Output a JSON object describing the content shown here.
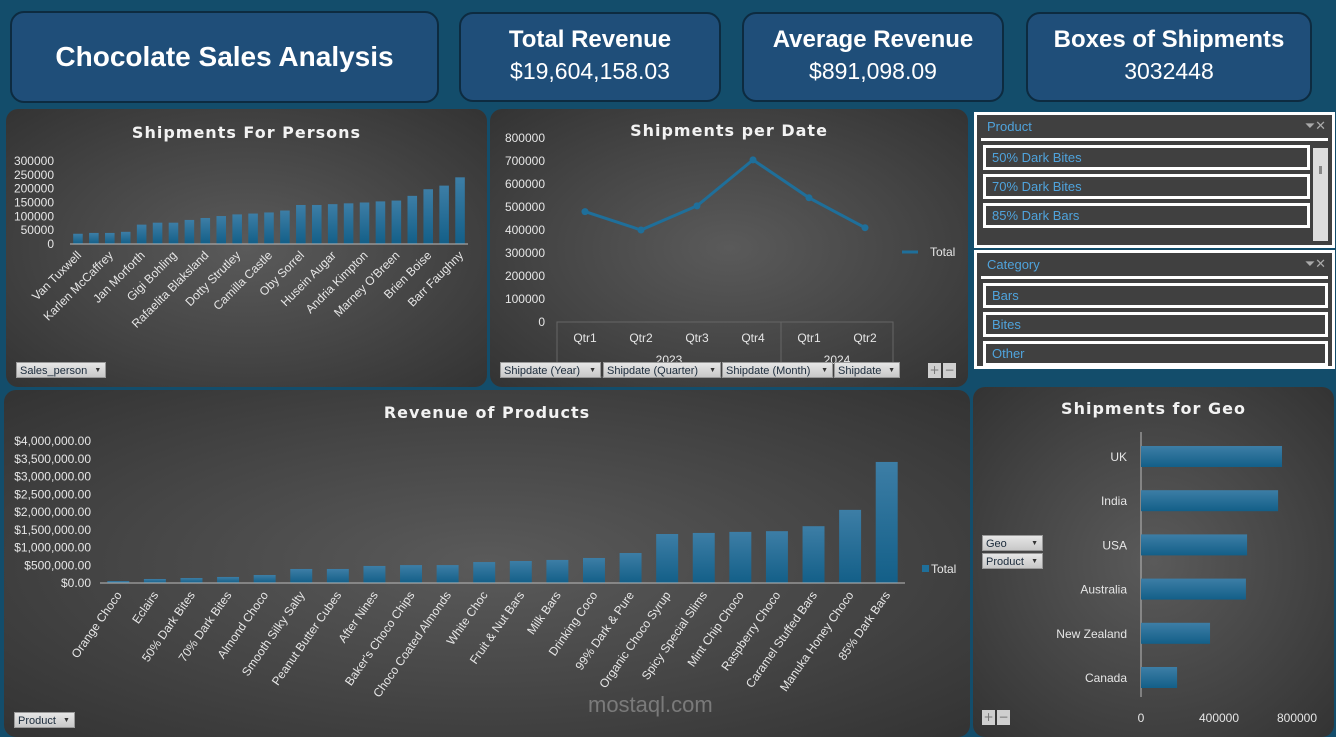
{
  "header": {
    "title": "Chocolate Sales Analysis"
  },
  "kpis": [
    {
      "label": "Total Revenue",
      "value": "$19,604,158.03"
    },
    {
      "label": "Average Revenue",
      "value": "$891,098.09"
    },
    {
      "label": "Boxes of Shipments",
      "value": "3032448"
    }
  ],
  "colors": {
    "bar": "#1f6f9a",
    "background": "#134d6b",
    "card": "#1f4e79",
    "slicer_text": "#4fa3dc"
  },
  "slicers": {
    "product": {
      "title": "Product",
      "items": [
        "50% Dark Bites",
        "70% Dark Bites",
        "85% Dark Bars"
      ]
    },
    "category": {
      "title": "Category",
      "items": [
        "Bars",
        "Bites",
        "Other"
      ]
    }
  },
  "field_buttons": {
    "persons": "Sales_person",
    "date": [
      "Shipdate (Year)",
      "Shipdate (Quarter)",
      "Shipdate (Month)",
      "Shipdate"
    ],
    "revenue": "Product",
    "geo": [
      "Geo",
      "Product"
    ]
  },
  "watermark": "mostaql.com",
  "chart_data": [
    {
      "type": "bar",
      "title": "Shipments For Persons",
      "ylim": [
        0,
        300000
      ],
      "yticks": [
        0,
        50000,
        100000,
        150000,
        200000,
        250000,
        300000
      ],
      "categories": [
        "Van Tuxwell",
        "",
        "Karlen McCaffrey",
        "",
        "Jan Morforth",
        "",
        "Gigi Bohling",
        "",
        "Rafaelita Blaksland",
        "",
        "Dotty Strutley",
        "",
        "Camilla Castle",
        "",
        "Oby Sorrel",
        "",
        "Husein Augar",
        "",
        "Andria Kimpton",
        "",
        "Marney O'Breen",
        "",
        "Brien Boise",
        "",
        "Barr Faughny"
      ],
      "values": [
        37000,
        40000,
        40000,
        44000,
        70000,
        77000,
        77000,
        87000,
        94000,
        101000,
        107000,
        110000,
        114000,
        121000,
        141000,
        141000,
        144000,
        147000,
        150000,
        154000,
        157000,
        174000,
        198000,
        211000,
        241000
      ]
    },
    {
      "type": "line",
      "title": "Shipments per Date",
      "ylim": [
        0,
        800000
      ],
      "yticks": [
        0,
        100000,
        200000,
        300000,
        400000,
        500000,
        600000,
        700000,
        800000
      ],
      "categories": [
        "Qtr1",
        "Qtr2",
        "Qtr3",
        "Qtr4",
        "Qtr1",
        "Qtr2"
      ],
      "groups": [
        {
          "label": "2023",
          "span": 4
        },
        {
          "label": "2024",
          "span": 2
        }
      ],
      "series": [
        {
          "name": "Total",
          "values": [
            480000,
            400000,
            505000,
            705000,
            540000,
            410000
          ]
        }
      ],
      "legend": "right"
    },
    {
      "type": "bar",
      "title": "Revenue of Products",
      "ylim": [
        0,
        4000000
      ],
      "yticks": [
        "$0.00",
        "$500,000.00",
        "$1,000,000.00",
        "$1,500,000.00",
        "$2,000,000.00",
        "$2,500,000.00",
        "$3,000,000.00",
        "$3,500,000.00",
        "$4,000,000.00"
      ],
      "categories": [
        "Orange Choco",
        "Eclairs",
        "50% Dark Bites",
        "70% Dark Bites",
        "Almond Choco",
        "Smooth Silky Salty",
        "Peanut Butter Cubes",
        "After Nines",
        "Baker's Choco Chips",
        "Choco Coated Almonds",
        "White Choc",
        "Fruit & Nut Bars",
        "Milk Bars",
        "Drinking Coco",
        "99% Dark & Pure",
        "Organic Choco Syrup",
        "Spicy Special Slims",
        "Mint Chip Choco",
        "Raspberry Choco",
        "Caramel Stuffed Bars",
        "Manuka Honey Choco",
        "85% Dark Bars"
      ],
      "series": [
        {
          "name": "Total",
          "values": [
            56000,
            113000,
            140000,
            170000,
            225000,
            395000,
            395000,
            480000,
            505000,
            505000,
            590000,
            620000,
            650000,
            705000,
            845000,
            1380000,
            1410000,
            1440000,
            1460000,
            1600000,
            2060000,
            3410000
          ]
        }
      ],
      "legend": "right"
    },
    {
      "type": "bar",
      "orientation": "horizontal",
      "title": "Shipments for Geo",
      "xlim": [
        0,
        800000
      ],
      "xticks": [
        0,
        400000,
        800000
      ],
      "categories": [
        "UK",
        "India",
        "USA",
        "Australia",
        "New Zealand",
        "Canada"
      ],
      "values": [
        723000,
        703000,
        544000,
        538000,
        354000,
        185000
      ]
    }
  ]
}
